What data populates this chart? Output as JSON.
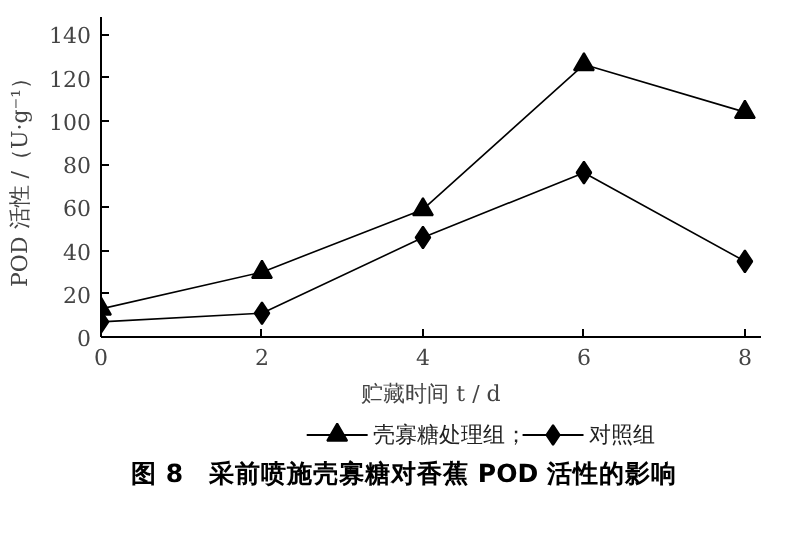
{
  "chart_data": {
    "type": "line",
    "title": "图 8　采前喷施壳寡糖对香蕉 POD 活性的影响",
    "xlabel": "贮藏时间 t / d",
    "ylabel": "POD 活性 /（U·g⁻¹）",
    "x": [
      0,
      2,
      4,
      6,
      8
    ],
    "series": [
      {
        "name": "壳寡糖处理组；",
        "color": "#000000",
        "marker": "triangle",
        "values": [
          13,
          30,
          59,
          126,
          104
        ]
      },
      {
        "name": "对照组",
        "color": "#000000",
        "marker": "diamond",
        "values": [
          7,
          11,
          46,
          76,
          35
        ]
      }
    ],
    "xlim": [
      0,
      8.2
    ],
    "xticks": [
      0,
      2,
      4,
      6,
      8
    ],
    "ylim": [
      0,
      148
    ],
    "yticks": [
      0,
      20,
      40,
      60,
      80,
      100,
      120,
      140
    ],
    "grid": false,
    "legend": "bottom",
    "line_style": "solid"
  }
}
